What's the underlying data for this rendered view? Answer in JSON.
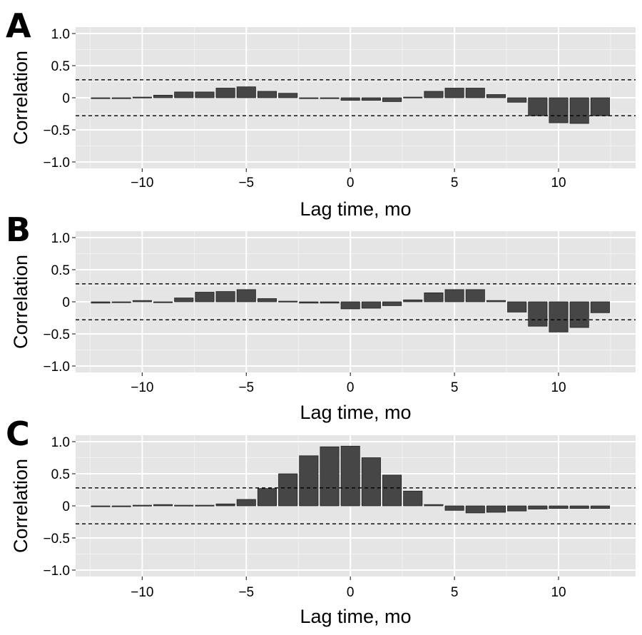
{
  "colors": {
    "panel_background": "#e5e5e5",
    "grid_major": "#ffffff",
    "grid_minor": "#f2f2f2",
    "bar_fill": "#464646",
    "bar_outline": "#222222",
    "threshold_line": "#000000"
  },
  "chart_data": [
    {
      "type": "bar",
      "panel_letter": "A",
      "xlabel": "Lag time, mo",
      "ylabel": "Correlation",
      "x": [
        -12,
        -11,
        -10,
        -9,
        -8,
        -7,
        -6,
        -5,
        -4,
        -3,
        -2,
        -1,
        0,
        1,
        2,
        3,
        4,
        5,
        6,
        7,
        8,
        9,
        10,
        11,
        12
      ],
      "values": [
        -0.01,
        0.0,
        0.01,
        0.04,
        0.09,
        0.09,
        0.15,
        0.17,
        0.1,
        0.07,
        -0.01,
        -0.01,
        -0.04,
        -0.04,
        -0.06,
        0.01,
        0.1,
        0.15,
        0.15,
        0.05,
        -0.07,
        -0.28,
        -0.39,
        -0.4,
        -0.28
      ],
      "xlim": [
        -13.2,
        13.7
      ],
      "ylim": [
        -1.1,
        1.1
      ],
      "x_ticks": [
        -10,
        -5,
        0,
        5,
        10
      ],
      "x_tick_labels": [
        "−10",
        "−5",
        "0",
        "5",
        "10"
      ],
      "y_ticks": [
        -1.0,
        -0.5,
        0,
        0.5,
        1.0
      ],
      "y_tick_labels": [
        "−1.0",
        "−0.5",
        "0",
        "0.5",
        "1.0"
      ],
      "threshold_lines": [
        0.28,
        -0.28
      ],
      "grid": true,
      "legend": false
    },
    {
      "type": "bar",
      "panel_letter": "B",
      "xlabel": "Lag time, mo",
      "ylabel": "Correlation",
      "x": [
        -12,
        -11,
        -10,
        -9,
        -8,
        -7,
        -6,
        -5,
        -4,
        -3,
        -2,
        -1,
        0,
        1,
        2,
        3,
        4,
        5,
        6,
        7,
        8,
        9,
        10,
        11,
        12
      ],
      "values": [
        -0.02,
        0.0,
        0.02,
        0.0,
        0.06,
        0.15,
        0.16,
        0.19,
        0.05,
        0.01,
        -0.02,
        -0.02,
        -0.11,
        -0.1,
        -0.06,
        0.03,
        0.14,
        0.19,
        0.19,
        0.02,
        -0.16,
        -0.38,
        -0.47,
        -0.4,
        -0.17
      ],
      "xlim": [
        -13.2,
        13.7
      ],
      "ylim": [
        -1.1,
        1.1
      ],
      "x_ticks": [
        -10,
        -5,
        0,
        5,
        10
      ],
      "x_tick_labels": [
        "−10",
        "−5",
        "0",
        "5",
        "10"
      ],
      "y_ticks": [
        -1.0,
        -0.5,
        0,
        0.5,
        1.0
      ],
      "y_tick_labels": [
        "−1.0",
        "−0.5",
        "0",
        "0.5",
        "1.0"
      ],
      "threshold_lines": [
        0.28,
        -0.28
      ],
      "grid": true,
      "legend": false
    },
    {
      "type": "bar",
      "panel_letter": "C",
      "xlabel": "Lag time, mo",
      "ylabel": "Correlation",
      "x": [
        -12,
        -11,
        -10,
        -9,
        -8,
        -7,
        -6,
        -5,
        -4,
        -3,
        -2,
        -1,
        0,
        1,
        2,
        3,
        4,
        5,
        6,
        7,
        8,
        9,
        10,
        11,
        12
      ],
      "values": [
        -0.01,
        0.0,
        0.01,
        0.02,
        0.01,
        0.01,
        0.03,
        0.1,
        0.27,
        0.5,
        0.78,
        0.92,
        0.93,
        0.75,
        0.48,
        0.23,
        0.02,
        -0.07,
        -0.11,
        -0.1,
        -0.08,
        -0.05,
        -0.04,
        -0.04,
        -0.04
      ],
      "xlim": [
        -13.2,
        13.7
      ],
      "ylim": [
        -1.1,
        1.1
      ],
      "x_ticks": [
        -10,
        -5,
        0,
        5,
        10
      ],
      "x_tick_labels": [
        "−10",
        "−5",
        "0",
        "5",
        "10"
      ],
      "y_ticks": [
        -1.0,
        -0.5,
        0,
        0.5,
        1.0
      ],
      "y_tick_labels": [
        "−1.0",
        "−0.5",
        "0",
        "0.5",
        "1.0"
      ],
      "threshold_lines": [
        0.28,
        -0.28
      ],
      "grid": true,
      "legend": false
    }
  ]
}
